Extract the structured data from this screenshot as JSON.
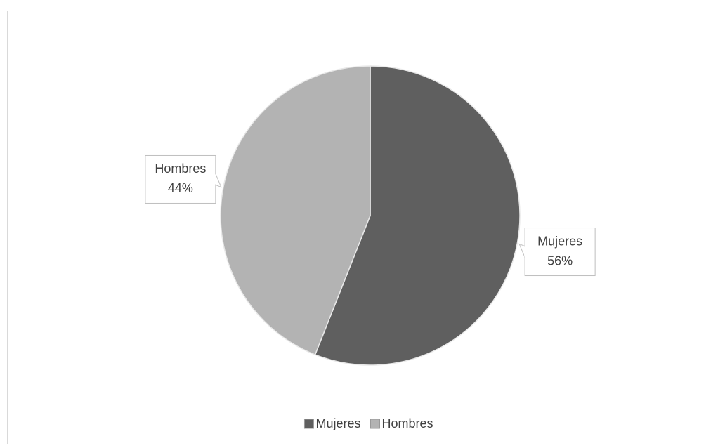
{
  "chart_data": {
    "type": "pie",
    "categories": [
      "Mujeres",
      "Hombres"
    ],
    "values": [
      56,
      44
    ],
    "value_labels": [
      "56%",
      "44%"
    ],
    "colors": [
      "#5f5f5f",
      "#b3b3b3"
    ],
    "legend": "bottom"
  }
}
